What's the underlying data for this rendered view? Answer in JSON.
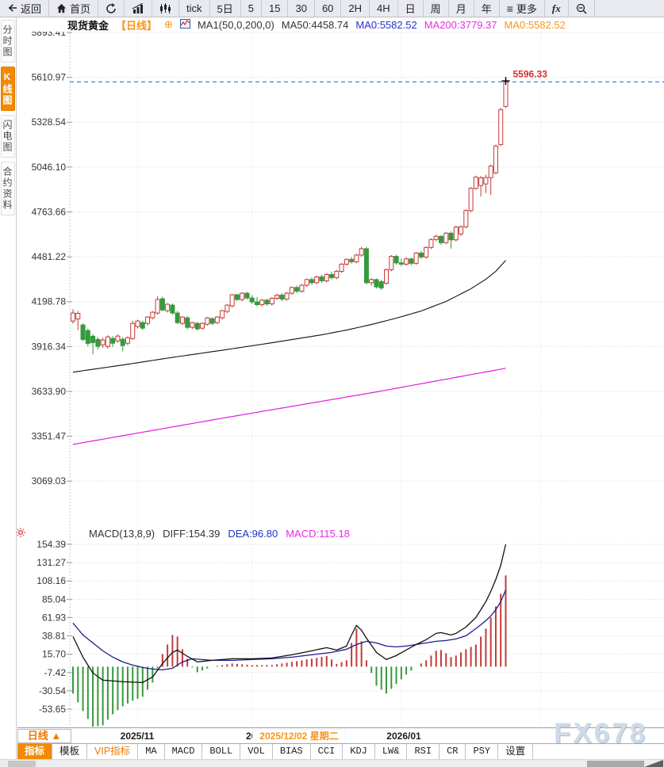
{
  "toolbar": {
    "back": "返回",
    "home": "首页",
    "more": "更多",
    "fx": "fx",
    "periods": [
      "tick",
      "5日",
      "5",
      "15",
      "30",
      "60",
      "2H",
      "4H",
      "日",
      "周",
      "月",
      "年"
    ]
  },
  "sidebar": {
    "items": [
      {
        "label": "分时图",
        "active": false
      },
      {
        "label": "K线图",
        "active": true
      },
      {
        "label": "闪电图",
        "active": false
      },
      {
        "label": "合约资料",
        "active": false
      }
    ]
  },
  "header": {
    "symbol": "现货黄金",
    "period": "【日线】",
    "ma_settings": "MA1(50,0,200,0)",
    "ma50": "MA50:4458.74",
    "ma0_blue": "MA0:5582.52",
    "ma200": "MA200:3779.37",
    "ma0_orange": "MA0:5582.52"
  },
  "macd_header": {
    "title": "MACD(13,8,9)",
    "diff": "DIFF:154.39",
    "dea": "DEA:96.80",
    "macd": "MACD:115.18"
  },
  "xaxis": {
    "period_selector": "日线 ▲",
    "tick1": "2025/11",
    "tick2": "2025/12",
    "tick3": "2026/01",
    "crosshair_date": "2025/12/02 星期二"
  },
  "tabs": {
    "items": [
      "指标",
      "模板",
      "VIP指标",
      "MA",
      "MACD",
      "BOLL",
      "VOL",
      "BIAS",
      "CCI",
      "KDJ",
      "LW&",
      "RSI",
      "CR",
      "PSY",
      "设置"
    ]
  },
  "watermark": "FX678",
  "price_label": "5596.33",
  "chart_data": {
    "type": "candlestick",
    "title": "现货黄金 日线",
    "y_ticks": [
      5893.41,
      5610.97,
      5328.54,
      5046.1,
      4763.66,
      4481.22,
      4198.78,
      3916.34,
      3633.9,
      3351.47,
      3069.03
    ],
    "macd_ticks": [
      154.39,
      131.27,
      108.16,
      85.04,
      61.93,
      38.81,
      15.7,
      -7.42,
      -30.54,
      -53.65
    ],
    "x_grid_idx": [
      13,
      36,
      66,
      94
    ],
    "price_line": 5582.52,
    "high_label": 5596.33,
    "candles": [
      [
        4077,
        4152,
        4060,
        4127
      ],
      [
        4090,
        4140,
        4020,
        4125
      ],
      [
        4052,
        4062,
        3950,
        3961
      ],
      [
        4017,
        4030,
        3918,
        3936
      ],
      [
        3981,
        3995,
        3868,
        3941
      ],
      [
        3961,
        3975,
        3898,
        3917
      ],
      [
        3927,
        3972,
        3908,
        3957
      ],
      [
        3917,
        3987,
        3903,
        3977
      ],
      [
        3967,
        3982,
        3913,
        3937
      ],
      [
        3952,
        3992,
        3940,
        3982
      ],
      [
        3962,
        3975,
        3885,
        3922
      ],
      [
        3937,
        3980,
        3925,
        3972
      ],
      [
        3967,
        4078,
        3957,
        4062
      ],
      [
        4042,
        4085,
        4030,
        4077
      ],
      [
        4067,
        4080,
        4022,
        4032
      ],
      [
        4062,
        4108,
        4050,
        4102
      ],
      [
        4097,
        4140,
        4087,
        4132
      ],
      [
        4127,
        4232,
        4117,
        4212
      ],
      [
        4217,
        4230,
        4137,
        4147
      ],
      [
        4142,
        4190,
        4130,
        4182
      ],
      [
        4177,
        4187,
        4117,
        4127
      ],
      [
        4127,
        4140,
        4057,
        4067
      ],
      [
        4062,
        4108,
        4052,
        4102
      ],
      [
        4097,
        4108,
        4025,
        4037
      ],
      [
        4037,
        4072,
        4027,
        4067
      ],
      [
        4062,
        4072,
        4017,
        4027
      ],
      [
        4032,
        4068,
        4022,
        4062
      ],
      [
        4057,
        4102,
        4047,
        4097
      ],
      [
        4092,
        4100,
        4052,
        4062
      ],
      [
        4067,
        4108,
        4057,
        4102
      ],
      [
        4097,
        4148,
        4087,
        4142
      ],
      [
        4137,
        4183,
        4127,
        4177
      ],
      [
        4172,
        4248,
        4162,
        4242
      ],
      [
        4242,
        4250,
        4205,
        4212
      ],
      [
        4212,
        4258,
        4202,
        4252
      ],
      [
        4252,
        4260,
        4212,
        4222
      ],
      [
        4222,
        4240,
        4185,
        4197
      ],
      [
        4197,
        4228,
        4170,
        4180
      ],
      [
        4180,
        4215,
        4168,
        4208
      ],
      [
        4208,
        4218,
        4172,
        4185
      ],
      [
        4185,
        4228,
        4175,
        4220
      ],
      [
        4220,
        4248,
        4210,
        4240
      ],
      [
        4240,
        4252,
        4202,
        4215
      ],
      [
        4215,
        4260,
        4205,
        4252
      ],
      [
        4252,
        4295,
        4242,
        4288
      ],
      [
        4288,
        4300,
        4252,
        4265
      ],
      [
        4265,
        4310,
        4255,
        4302
      ],
      [
        4302,
        4345,
        4292,
        4338
      ],
      [
        4338,
        4352,
        4305,
        4318
      ],
      [
        4318,
        4362,
        4308,
        4355
      ],
      [
        4355,
        4368,
        4318,
        4330
      ],
      [
        4330,
        4378,
        4320,
        4370
      ],
      [
        4370,
        4388,
        4338,
        4350
      ],
      [
        4350,
        4398,
        4340,
        4390
      ],
      [
        4390,
        4442,
        4380,
        4435
      ],
      [
        4435,
        4472,
        4425,
        4465
      ],
      [
        4465,
        4480,
        4438,
        4450
      ],
      [
        4450,
        4500,
        4440,
        4492
      ],
      [
        4492,
        4545,
        4482,
        4532
      ],
      [
        4532,
        4542,
        4308,
        4318
      ],
      [
        4318,
        4348,
        4300,
        4338
      ],
      [
        4338,
        4345,
        4282,
        4292
      ],
      [
        4325,
        4338,
        4272,
        4285
      ],
      [
        4315,
        4408,
        4305,
        4400
      ],
      [
        4400,
        4492,
        4390,
        4484
      ],
      [
        4484,
        4494,
        4432,
        4443
      ],
      [
        4443,
        4470,
        4422,
        4435
      ],
      [
        4435,
        4478,
        4425,
        4468
      ],
      [
        4468,
        4476,
        4428,
        4440
      ],
      [
        4440,
        4512,
        4430,
        4505
      ],
      [
        4505,
        4518,
        4468,
        4480
      ],
      [
        4480,
        4548,
        4470,
        4540
      ],
      [
        4540,
        4598,
        4530,
        4590
      ],
      [
        4590,
        4620,
        4580,
        4610
      ],
      [
        4610,
        4618,
        4558,
        4570
      ],
      [
        4570,
        4638,
        4560,
        4630
      ],
      [
        4630,
        4640,
        4533,
        4588
      ],
      [
        4588,
        4678,
        4578,
        4668
      ],
      [
        4625,
        4680,
        4612,
        4670
      ],
      [
        4670,
        4782,
        4660,
        4772
      ],
      [
        4772,
        4922,
        4762,
        4912
      ],
      [
        4912,
        4992,
        4902,
        4982
      ],
      [
        4930,
        4990,
        4860,
        4978
      ],
      [
        4940,
        4998,
        4882,
        4980
      ],
      [
        4980,
        5062,
        4872,
        5052
      ],
      [
        5010,
        5188,
        5000,
        5178
      ],
      [
        5188,
        5418,
        5178,
        5408
      ],
      [
        5428,
        5596.33,
        5418,
        5582.52
      ]
    ],
    "ma50_points": [
      [
        0,
        3755
      ],
      [
        10,
        3800
      ],
      [
        20,
        3848
      ],
      [
        30,
        3893
      ],
      [
        40,
        3940
      ],
      [
        50,
        3990
      ],
      [
        55,
        4020
      ],
      [
        60,
        4055
      ],
      [
        65,
        4095
      ],
      [
        70,
        4140
      ],
      [
        75,
        4200
      ],
      [
        80,
        4280
      ],
      [
        83,
        4340
      ],
      [
        85,
        4390
      ],
      [
        87,
        4458.74
      ]
    ],
    "ma200_points": [
      [
        0,
        3300
      ],
      [
        30,
        3465
      ],
      [
        60,
        3625
      ],
      [
        87,
        3779.37
      ]
    ],
    "macd": {
      "diff_points": [
        [
          0,
          38
        ],
        [
          2,
          12
        ],
        [
          4,
          -8
        ],
        [
          6,
          -17
        ],
        [
          10,
          -19
        ],
        [
          14,
          -20
        ],
        [
          16,
          -13
        ],
        [
          18,
          4
        ],
        [
          20,
          18
        ],
        [
          21,
          21
        ],
        [
          23,
          13
        ],
        [
          25,
          6
        ],
        [
          28,
          8
        ],
        [
          32,
          10
        ],
        [
          36,
          10
        ],
        [
          40,
          11
        ],
        [
          44,
          15
        ],
        [
          48,
          20
        ],
        [
          51,
          24
        ],
        [
          53,
          21
        ],
        [
          55,
          26
        ],
        [
          56,
          40
        ],
        [
          57,
          52
        ],
        [
          58,
          46
        ],
        [
          59,
          36
        ],
        [
          61,
          18
        ],
        [
          63,
          9
        ],
        [
          65,
          14
        ],
        [
          67,
          21
        ],
        [
          69,
          28
        ],
        [
          71,
          34
        ],
        [
          73,
          42
        ],
        [
          74,
          43
        ],
        [
          76,
          40
        ],
        [
          77,
          42
        ],
        [
          79,
          50
        ],
        [
          81,
          62
        ],
        [
          83,
          82
        ],
        [
          84,
          95
        ],
        [
          85,
          110
        ],
        [
          86,
          128
        ],
        [
          87,
          154.39
        ]
      ],
      "dea_points": [
        [
          0,
          55
        ],
        [
          2,
          40
        ],
        [
          4,
          30
        ],
        [
          6,
          20
        ],
        [
          8,
          12
        ],
        [
          10,
          6
        ],
        [
          12,
          2
        ],
        [
          14,
          -1
        ],
        [
          16,
          -3
        ],
        [
          18,
          -4
        ],
        [
          20,
          -2
        ],
        [
          22,
          6
        ],
        [
          24,
          10
        ],
        [
          26,
          9
        ],
        [
          28,
          8
        ],
        [
          32,
          8
        ],
        [
          36,
          9
        ],
        [
          40,
          10
        ],
        [
          44,
          12
        ],
        [
          48,
          15
        ],
        [
          52,
          18
        ],
        [
          55,
          22
        ],
        [
          57,
          28
        ],
        [
          59,
          32
        ],
        [
          61,
          30
        ],
        [
          63,
          26
        ],
        [
          65,
          25
        ],
        [
          67,
          26
        ],
        [
          69,
          28
        ],
        [
          71,
          30
        ],
        [
          73,
          32
        ],
        [
          75,
          33
        ],
        [
          77,
          35
        ],
        [
          79,
          39
        ],
        [
          81,
          48
        ],
        [
          83,
          58
        ],
        [
          84,
          64
        ],
        [
          85,
          72
        ],
        [
          86,
          82
        ],
        [
          87,
          96.8
        ]
      ]
    },
    "colors": {
      "up": "#c23b38",
      "down": "#359a3d",
      "ma50": "#101010",
      "ma200": "#dd1cdd",
      "diff": "#101010",
      "dea": "#1b1b8e",
      "price_line": "#1d7ad2",
      "label": "#d03030",
      "grid": "#dadada",
      "vgrid": "#e0e4e9",
      "axis_dash": "#b5d2ea",
      "tick_text": "#333333"
    }
  }
}
